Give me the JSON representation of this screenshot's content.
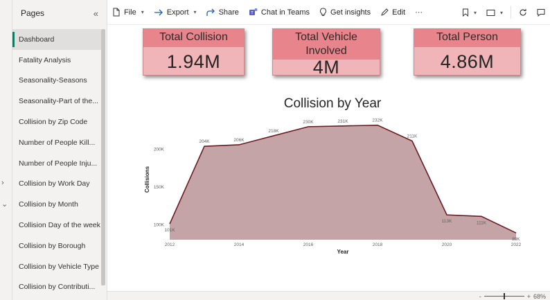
{
  "pages_panel": {
    "title": "Pages",
    "collapse_icon": "«",
    "items": [
      {
        "label": "Dashboard",
        "active": true
      },
      {
        "label": "Fatality Analysis"
      },
      {
        "label": "Seasonality-Seasons"
      },
      {
        "label": "Seasonality-Part of the..."
      },
      {
        "label": "Collision by Zip Code"
      },
      {
        "label": "Number of People Kill..."
      },
      {
        "label": "Number of People Inju..."
      },
      {
        "label": "Collision by Work Day"
      },
      {
        "label": "Collision by Month"
      },
      {
        "label": "Collision Day of the week"
      },
      {
        "label": "Collision by Borough"
      },
      {
        "label": "Collision by Vehicle Type"
      },
      {
        "label": "Collision by Contributi..."
      }
    ]
  },
  "toolbar": {
    "file": "File",
    "export": "Export",
    "share": "Share",
    "chat": "Chat in Teams",
    "insights": "Get insights",
    "edit": "Edit",
    "more": "···"
  },
  "cards": [
    {
      "title": "Total Collision",
      "value": "1.94M"
    },
    {
      "title": "Total Vehicle Involved",
      "value": "4M"
    },
    {
      "title": "Total Person",
      "value": "4.86M"
    }
  ],
  "colors": {
    "area_fill": "#c4a4a6",
    "line": "#6b1b22",
    "card_bg": "#f0b5b8",
    "card_head": "#e8858c",
    "active_page_bar": "#117865"
  },
  "chart_data": {
    "type": "area",
    "title": "Collision by Year",
    "xlabel": "Year",
    "ylabel": "Collisions",
    "x": [
      2012,
      2013,
      2014,
      2015,
      2016,
      2017,
      2018,
      2019,
      2020,
      2021,
      2022
    ],
    "values": [
      101,
      204,
      206,
      218,
      230,
      231,
      232,
      211,
      113,
      111,
      89
    ],
    "data_labels": [
      "101K",
      "204K",
      "206K",
      "218K",
      "230K",
      "231K",
      "232K",
      "211K",
      "113K",
      "111K",
      "89K"
    ],
    "x_ticks": [
      "2012",
      "2014",
      "2016",
      "2018",
      "2020",
      "2022"
    ],
    "y_ticks": [
      "100K",
      "150K",
      "200K"
    ],
    "y_tick_values": [
      100,
      150,
      200
    ],
    "ylim": [
      80,
      240
    ],
    "grid": false
  },
  "status": {
    "zoom_minus": "-",
    "zoom_plus": "+",
    "zoom_value": "68%"
  }
}
